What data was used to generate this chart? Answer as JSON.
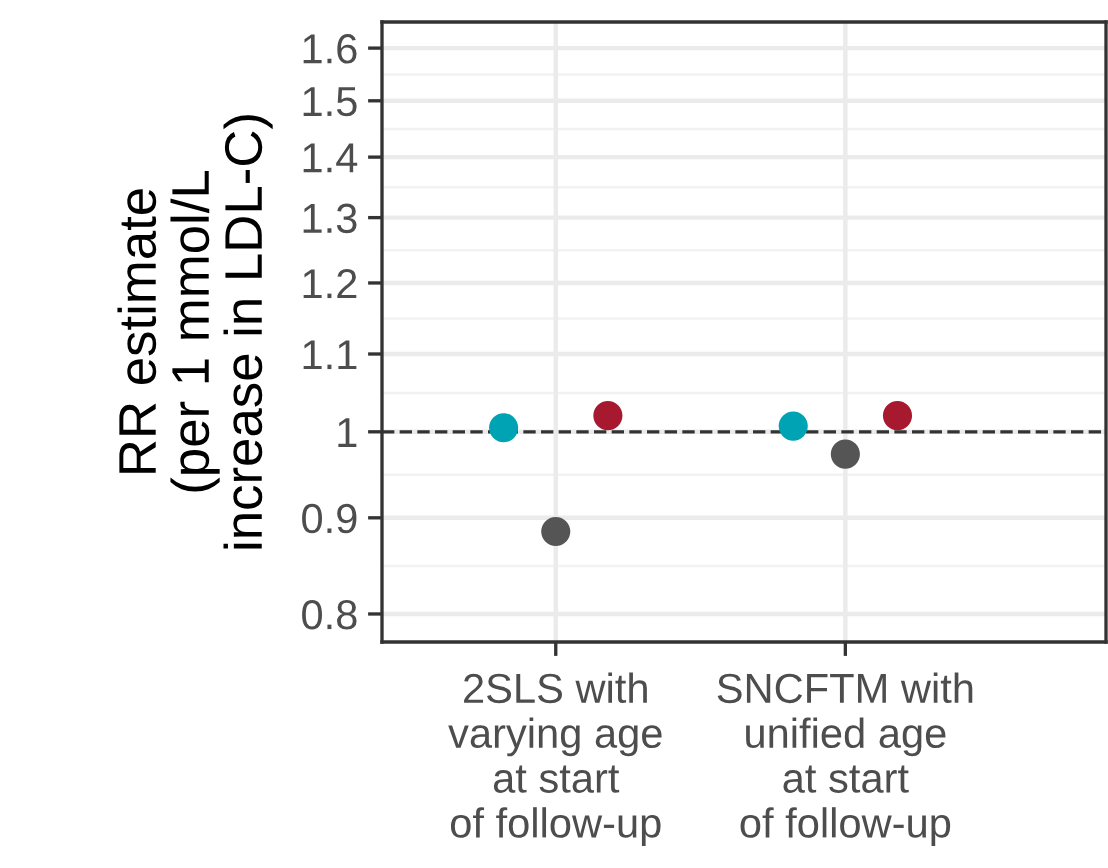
{
  "chart_data": {
    "type": "scatter",
    "ylabel": "RR estimate\n(per 1 mmol/L\nincrease in LDL-C)",
    "categories": [
      "2SLS with\nvarying age\nat start\nof follow-up",
      "SNCFTM with\nunified age\nat start\nof follow-up"
    ],
    "series": [
      {
        "color": "#00a3b4",
        "values": [
          1.005,
          1.007
        ]
      },
      {
        "color": "#555555",
        "values": [
          0.885,
          0.973
        ]
      },
      {
        "color": "#a6192e",
        "values": [
          1.02,
          1.02
        ]
      }
    ],
    "log": "y",
    "ylim": [
      0.773,
      1.652
    ],
    "yticks": [
      0.8,
      0.9,
      1,
      1.1,
      1.2,
      1.3,
      1.4,
      1.5,
      1.6
    ],
    "ref_lines": [
      {
        "axis": "y",
        "value": 1,
        "line_style": "dashed",
        "color": "#333333"
      }
    ],
    "grid": true,
    "marker": "circle"
  }
}
